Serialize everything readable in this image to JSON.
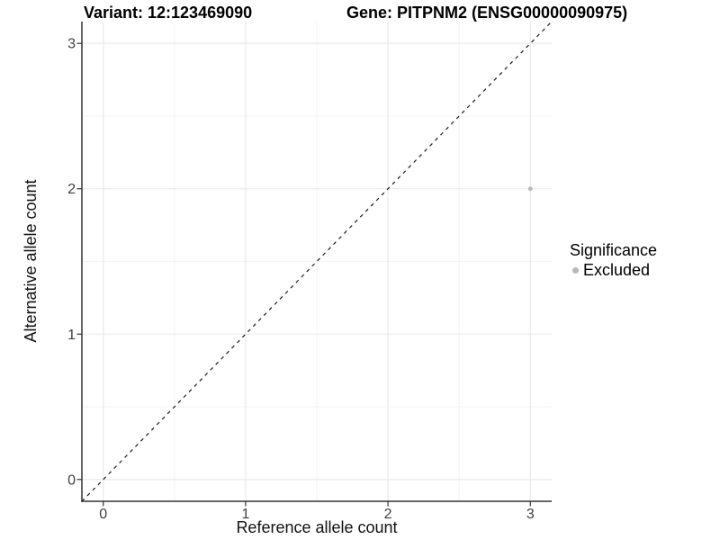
{
  "chart_data": {
    "type": "scatter",
    "titles": {
      "left": "Variant: 12:123469090",
      "right": "Gene: PITPNM2 (ENSG00000090975)"
    },
    "xlabel": "Reference allele count",
    "ylabel": "Alternative allele count",
    "xlim": [
      -0.15,
      3.15
    ],
    "ylim": [
      -0.15,
      3.15
    ],
    "xticks": [
      0,
      1,
      2,
      3
    ],
    "yticks": [
      0,
      1,
      2,
      3
    ],
    "xminor": [
      0.5,
      1.5,
      2.5
    ],
    "yminor": [
      0.5,
      1.5,
      2.5
    ],
    "grid": "major+minor",
    "identity_line": {
      "slope": 1,
      "intercept": 0,
      "style": "dashed",
      "color": "#1a1a1a"
    },
    "series": [
      {
        "name": "Excluded",
        "color": "#b9b9b9",
        "points": [
          {
            "x": 3,
            "y": 2
          }
        ]
      }
    ],
    "legend": {
      "title": "Significance",
      "position": "right",
      "items": [
        {
          "label": "Excluded",
          "color": "#b9b9b9"
        }
      ]
    },
    "style_colors": {
      "grid_major": "#e8e8e8",
      "grid_minor": "#f3f3f3",
      "axis_line": "#333333",
      "tick_label": "#404040"
    }
  }
}
